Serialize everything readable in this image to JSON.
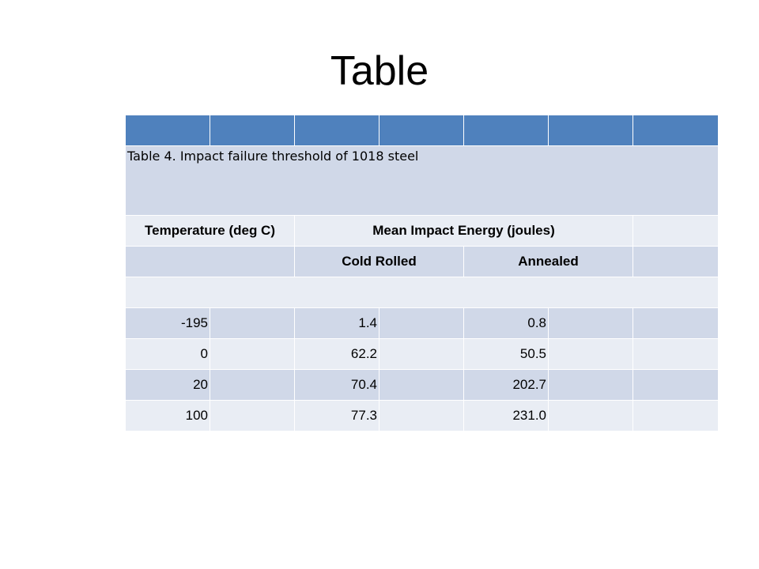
{
  "title": "Table",
  "table": {
    "caption": "Table 4. Impact failure threshold of 1018 steel",
    "header1": {
      "col1": "Temperature (deg C)",
      "col2": "Mean Impact Energy (joules)"
    },
    "header2": {
      "col1": "Cold Rolled",
      "col2": "Annealed"
    },
    "rows": [
      {
        "temp": "-195",
        "cold": "1.4",
        "annealed": "0.8"
      },
      {
        "temp": "0",
        "cold": "62.2",
        "annealed": "50.5"
      },
      {
        "temp": "20",
        "cold": "70.4",
        "annealed": "202.7"
      },
      {
        "temp": "100",
        "cold": "77.3",
        "annealed": "231.0"
      }
    ]
  },
  "colors": {
    "header": "#4f81bd",
    "band_dark": "#d0d8e8",
    "band_light": "#e9edf4"
  }
}
